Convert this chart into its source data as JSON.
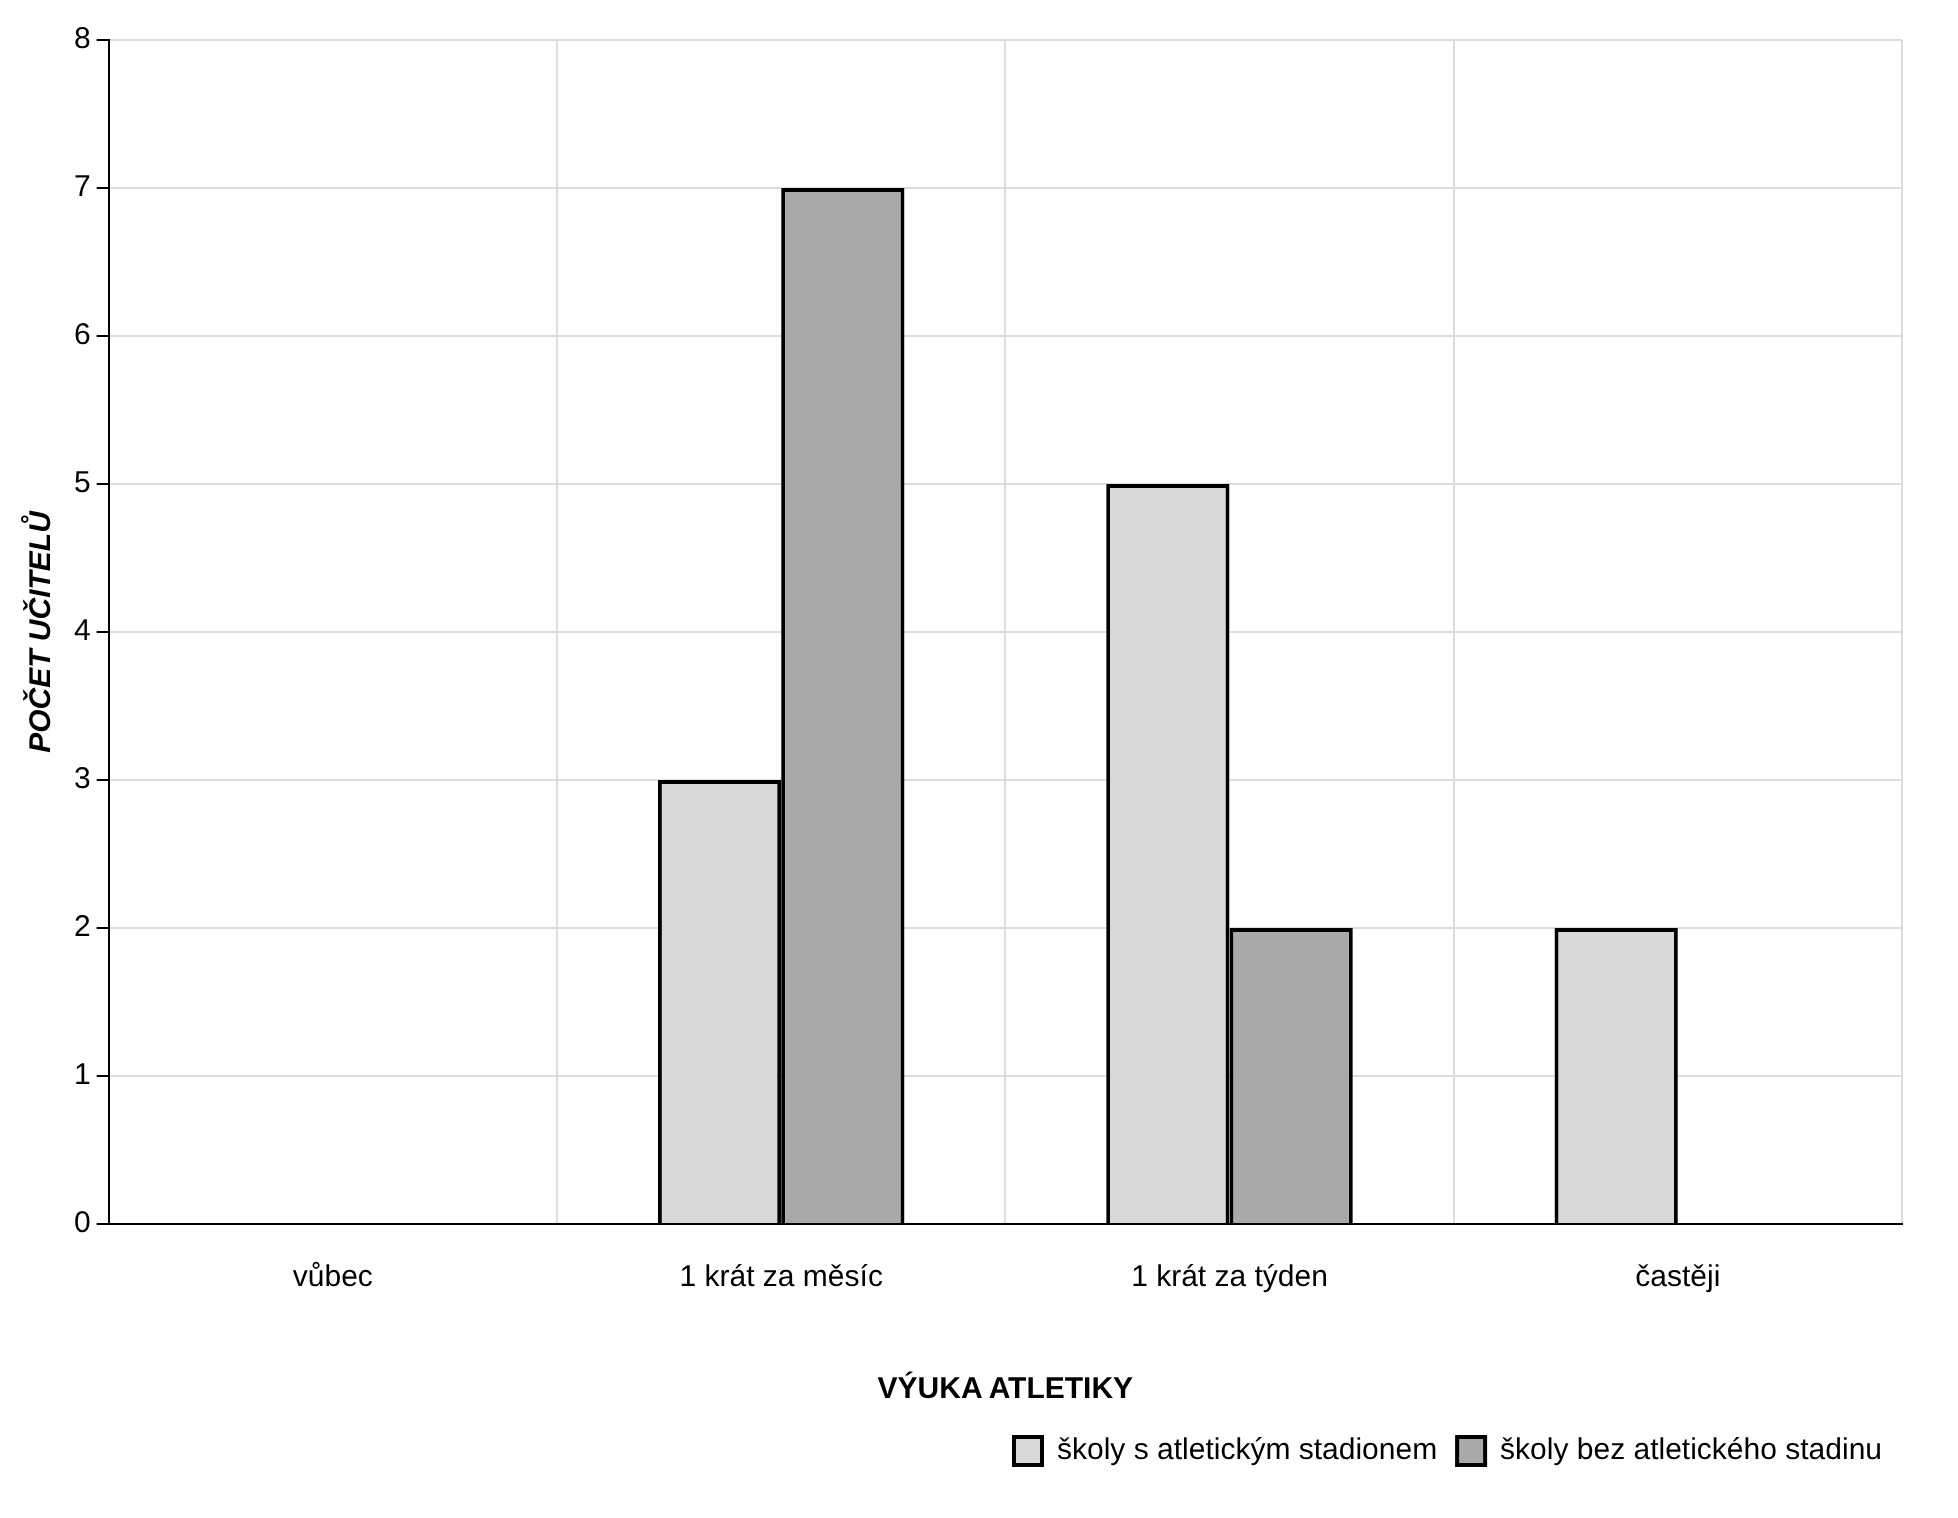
{
  "chart_data": {
    "type": "bar",
    "xlabel": "VÝUKA ATLETIKY",
    "ylabel": "POČET UČITELŮ",
    "categories": [
      "vůbec",
      "1 krát za měsíc",
      "1 krát za týden",
      "častěji"
    ],
    "series": [
      {
        "name": "školy s atletickým stadionem",
        "color": "#d9d9d9",
        "values": [
          0,
          3,
          5,
          2
        ]
      },
      {
        "name": "školy bez atletického stadinu",
        "color": "#a9a9a9",
        "values": [
          0,
          7,
          2,
          0
        ]
      }
    ],
    "ylim": [
      0,
      8
    ],
    "yticks": [
      0,
      1,
      2,
      3,
      4,
      5,
      6,
      7,
      8
    ],
    "grid": true,
    "legend": "bottom right"
  }
}
